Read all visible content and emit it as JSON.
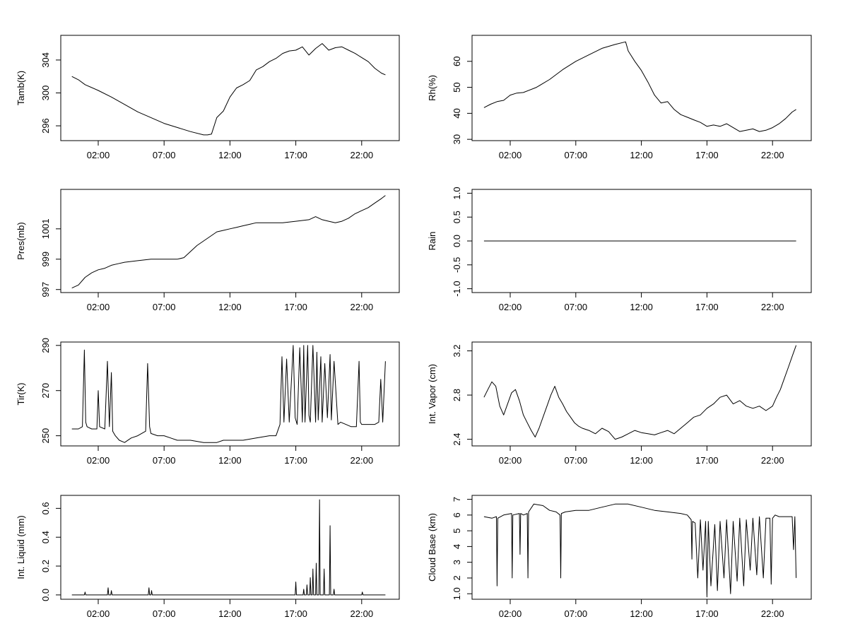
{
  "chart_data": [
    {
      "type": "line",
      "ylabel": "Tamb(K)",
      "xticks": [
        "02:00",
        "07:00",
        "12:00",
        "17:00",
        "22:00"
      ],
      "xlim": [
        0,
        24.7
      ],
      "ylim": [
        294.2,
        307.0
      ],
      "yticks": [
        296,
        300,
        304
      ],
      "series": [
        {
          "x": [
            0,
            0.5,
            1,
            2,
            3,
            4,
            5,
            6,
            7,
            8,
            9,
            10,
            10.3,
            10.6,
            11,
            11.5,
            12,
            12.5,
            13,
            13.5,
            14,
            14.5,
            15,
            15.5,
            16,
            16.5,
            17,
            17.5,
            18,
            18.5,
            19,
            19.5,
            20,
            20.5,
            21,
            21.5,
            22,
            22.5,
            23,
            23.5,
            23.8
          ],
          "y": [
            302.0,
            301.6,
            301.0,
            300.3,
            299.5,
            298.6,
            297.7,
            297.0,
            296.3,
            295.8,
            295.3,
            294.9,
            294.9,
            295.0,
            297.0,
            297.8,
            299.5,
            300.6,
            301.0,
            301.5,
            302.8,
            303.2,
            303.8,
            304.2,
            304.8,
            305.1,
            305.2,
            305.6,
            304.6,
            305.4,
            306.0,
            305.2,
            305.5,
            305.6,
            305.2,
            304.8,
            304.3,
            303.8,
            303.0,
            302.4,
            302.2
          ]
        }
      ]
    },
    {
      "type": "line",
      "ylabel": "Rh(%)",
      "xticks": [
        "02:00",
        "07:00",
        "12:00",
        "17:00",
        "22:00"
      ],
      "xlim": [
        0,
        24.7
      ],
      "ylim": [
        29.5,
        70.0
      ],
      "yticks": [
        30,
        40,
        50,
        60
      ],
      "series": [
        {
          "x": [
            0,
            0.5,
            1,
            1.5,
            2,
            2.5,
            3,
            4,
            5,
            6,
            7,
            8,
            9,
            10,
            10.8,
            11,
            11.5,
            12,
            12.5,
            13,
            13.5,
            14,
            14.5,
            15,
            15.5,
            16,
            16.5,
            17,
            17.5,
            18,
            18.5,
            19,
            19.5,
            20,
            20.5,
            21,
            21.5,
            22,
            22.5,
            23,
            23.5,
            23.8
          ],
          "y": [
            42.2,
            43.5,
            44.5,
            45.0,
            47.0,
            47.8,
            48.0,
            50.0,
            53.0,
            56.8,
            60.0,
            62.5,
            65.0,
            66.5,
            67.5,
            64.0,
            60.0,
            56.5,
            52.0,
            47.0,
            44.0,
            44.5,
            41.5,
            39.5,
            38.5,
            37.5,
            36.5,
            35.0,
            35.5,
            35.0,
            36.0,
            34.5,
            33.0,
            33.5,
            34.0,
            33.0,
            33.5,
            34.5,
            36.0,
            38.0,
            40.5,
            41.5
          ]
        }
      ]
    },
    {
      "type": "line",
      "ylabel": "Pres(mb)",
      "xticks": [
        "02:00",
        "07:00",
        "12:00",
        "17:00",
        "22:00"
      ],
      "xlim": [
        0,
        24.7
      ],
      "ylim": [
        996.8,
        1003.6
      ],
      "yticks": [
        997,
        999,
        1001
      ],
      "series": [
        {
          "x": [
            0,
            0.5,
            1,
            1.5,
            2,
            2.5,
            3,
            3.5,
            4,
            5,
            6,
            7,
            8,
            8.5,
            9,
            9.5,
            10,
            10.5,
            11,
            11.5,
            12,
            12.5,
            13,
            13.5,
            14,
            15,
            16,
            17,
            18,
            18.5,
            19,
            19.5,
            20,
            20.5,
            21,
            21.5,
            22,
            22.5,
            23,
            23.5,
            23.8
          ],
          "y": [
            997.1,
            997.3,
            997.8,
            998.1,
            998.3,
            998.4,
            998.6,
            998.7,
            998.8,
            998.9,
            999.0,
            999.0,
            999.0,
            999.1,
            999.5,
            999.9,
            1000.2,
            1000.5,
            1000.8,
            1000.9,
            1001.0,
            1001.1,
            1001.2,
            1001.3,
            1001.4,
            1001.4,
            1001.4,
            1001.5,
            1001.6,
            1001.8,
            1001.6,
            1001.5,
            1001.4,
            1001.5,
            1001.7,
            1002.0,
            1002.2,
            1002.4,
            1002.7,
            1003.0,
            1003.2
          ]
        }
      ]
    },
    {
      "type": "line",
      "ylabel": "Rain",
      "xticks": [
        "02:00",
        "07:00",
        "12:00",
        "17:00",
        "22:00"
      ],
      "xlim": [
        0,
        24.7
      ],
      "ylim": [
        -1.08,
        1.08
      ],
      "yticks": [
        -1.0,
        -0.5,
        0.0,
        0.5,
        1.0
      ],
      "series": [
        {
          "x": [
            0,
            23.8
          ],
          "y": [
            0.0,
            0.0
          ]
        }
      ]
    },
    {
      "type": "line",
      "ylabel": "Tir(K)",
      "xticks": [
        "02:00",
        "07:00",
        "12:00",
        "17:00",
        "22:00"
      ],
      "xlim": [
        0,
        24.7
      ],
      "ylim": [
        245.5,
        291.5
      ],
      "yticks": [
        250,
        270,
        290
      ],
      "series": [
        {
          "x": [
            0,
            0.5,
            0.8,
            0.95,
            1.05,
            1.15,
            1.5,
            1.9,
            2.0,
            2.1,
            2.5,
            2.7,
            2.85,
            3.0,
            3.1,
            3.3,
            3.6,
            4.0,
            4.5,
            5.0,
            5.6,
            5.75,
            5.9,
            6.0,
            6.5,
            7.0,
            7.5,
            8.0,
            9.0,
            10.0,
            11.0,
            11.5,
            12.0,
            13.0,
            14.0,
            15.0,
            15.5,
            15.8,
            15.95,
            16.1,
            16.3,
            16.5,
            16.7,
            16.8,
            16.95,
            17.1,
            17.3,
            17.5,
            17.6,
            17.7,
            17.9,
            18.0,
            18.1,
            18.3,
            18.5,
            18.6,
            18.7,
            18.9,
            19.0,
            19.2,
            19.4,
            19.6,
            19.7,
            19.9,
            20.2,
            20.4,
            20.8,
            21.2,
            21.6,
            21.8,
            21.9,
            22.0,
            22.3,
            22.6,
            23.0,
            23.3,
            23.45,
            23.6,
            23.8
          ],
          "y": [
            253,
            253,
            254,
            288,
            256,
            254,
            253,
            253,
            270,
            254,
            253,
            283,
            254,
            278,
            252,
            250,
            248,
            247,
            249,
            250,
            252,
            282,
            254,
            251,
            250,
            250,
            249,
            248,
            248,
            247,
            247,
            248,
            248,
            248,
            249,
            250,
            250,
            255,
            285,
            256,
            284,
            256,
            278,
            290,
            258,
            255,
            289,
            256,
            290,
            256,
            290,
            259,
            256,
            290,
            256,
            287,
            257,
            285,
            256,
            282,
            258,
            286,
            257,
            283,
            255,
            256,
            255,
            254,
            254,
            283,
            256,
            255,
            255,
            255,
            255,
            256,
            275,
            256,
            283
          ]
        }
      ]
    },
    {
      "type": "line",
      "ylabel": "Int. Vapor (cm)",
      "xticks": [
        "02:00",
        "07:00",
        "12:00",
        "17:00",
        "22:00"
      ],
      "xlim": [
        0,
        24.7
      ],
      "ylim": [
        2.34,
        3.28
      ],
      "yticks": [
        2.4,
        2.8,
        3.2
      ],
      "series": [
        {
          "x": [
            0,
            0.3,
            0.6,
            0.9,
            1.2,
            1.5,
            1.8,
            2.1,
            2.4,
            2.7,
            3.0,
            3.3,
            3.6,
            3.9,
            4.2,
            4.5,
            4.8,
            5.1,
            5.4,
            5.7,
            6.0,
            6.3,
            6.6,
            6.9,
            7.2,
            7.5,
            8.0,
            8.5,
            9.0,
            9.5,
            10.0,
            10.5,
            11.0,
            11.5,
            12.0,
            12.5,
            13.0,
            13.5,
            14.0,
            14.5,
            15.0,
            15.5,
            16.0,
            16.5,
            17.0,
            17.5,
            18.0,
            18.5,
            19.0,
            19.5,
            20.0,
            20.5,
            21.0,
            21.5,
            22.0,
            22.3,
            22.6,
            22.9,
            23.2,
            23.5,
            23.8
          ],
          "y": [
            2.78,
            2.85,
            2.92,
            2.88,
            2.7,
            2.62,
            2.72,
            2.82,
            2.85,
            2.75,
            2.62,
            2.55,
            2.48,
            2.42,
            2.5,
            2.6,
            2.7,
            2.8,
            2.88,
            2.78,
            2.72,
            2.65,
            2.6,
            2.55,
            2.52,
            2.5,
            2.48,
            2.45,
            2.5,
            2.47,
            2.4,
            2.42,
            2.45,
            2.48,
            2.46,
            2.45,
            2.44,
            2.46,
            2.48,
            2.45,
            2.5,
            2.55,
            2.6,
            2.62,
            2.68,
            2.72,
            2.78,
            2.8,
            2.72,
            2.75,
            2.7,
            2.68,
            2.7,
            2.66,
            2.7,
            2.78,
            2.85,
            2.95,
            3.05,
            3.15,
            3.25
          ]
        }
      ]
    },
    {
      "type": "line",
      "ylabel": "Int. Liquid (mm)",
      "xticks": [
        "02:00",
        "07:00",
        "12:00",
        "17:00",
        "22:00"
      ],
      "xlim": [
        0,
        24.7
      ],
      "ylim": [
        -0.03,
        0.69
      ],
      "yticks": [
        0.0,
        0.2,
        0.4,
        0.6
      ],
      "series": [
        {
          "x": [
            0,
            0.95,
            1.0,
            1.05,
            2.7,
            2.75,
            2.8,
            2.95,
            3.0,
            3.05,
            5.8,
            5.85,
            5.9,
            6.0,
            6.05,
            6.1,
            16.95,
            17.0,
            17.05,
            17.55,
            17.6,
            17.65,
            17.8,
            17.85,
            17.9,
            18.05,
            18.1,
            18.15,
            18.25,
            18.3,
            18.35,
            18.5,
            18.55,
            18.6,
            18.75,
            18.8,
            18.85,
            19.1,
            19.15,
            19.2,
            19.55,
            19.6,
            19.65,
            19.85,
            19.9,
            19.95,
            22.0,
            22.05,
            22.1,
            23.8
          ],
          "y": [
            0,
            0,
            0.02,
            0,
            0,
            0.05,
            0,
            0,
            0.03,
            0,
            0,
            0.05,
            0,
            0,
            0.03,
            0,
            0,
            0.09,
            0,
            0,
            0.04,
            0,
            0,
            0.07,
            0,
            0,
            0.12,
            0,
            0,
            0.18,
            0,
            0,
            0.22,
            0,
            0,
            0.66,
            0,
            0,
            0.18,
            0,
            0,
            0.48,
            0,
            0,
            0.04,
            0,
            0,
            0.02,
            0,
            0
          ]
        }
      ]
    },
    {
      "type": "line",
      "ylabel": "Cloud Base (km)",
      "xticks": [
        "02:00",
        "07:00",
        "12:00",
        "17:00",
        "22:00"
      ],
      "xlim": [
        0,
        24.7
      ],
      "ylim": [
        0.65,
        7.25
      ],
      "yticks": [
        1,
        2,
        3,
        4,
        5,
        6,
        7
      ],
      "series": [
        {
          "x": [
            0,
            0.6,
            0.95,
            1.0,
            1.05,
            1.5,
            2.1,
            2.15,
            2.2,
            2.7,
            2.75,
            2.8,
            3.0,
            3.3,
            3.35,
            3.4,
            3.8,
            4.5,
            5.0,
            5.5,
            5.8,
            5.85,
            5.9,
            6.2,
            7.0,
            8.0,
            9.0,
            10.0,
            11.0,
            12.0,
            13.0,
            14.0,
            15.0,
            15.5,
            15.8,
            15.85,
            15.9,
            16.1,
            16.3,
            16.5,
            16.7,
            16.9,
            17.0,
            17.1,
            17.3,
            17.6,
            17.8,
            18.0,
            18.3,
            18.5,
            18.8,
            19.0,
            19.3,
            19.5,
            19.8,
            20.0,
            20.3,
            20.5,
            20.8,
            21.0,
            21.3,
            21.5,
            21.8,
            21.9,
            22.0,
            22.2,
            22.5,
            23.0,
            23.5,
            23.6,
            23.7,
            23.8
          ],
          "y": [
            5.9,
            5.8,
            5.9,
            1.5,
            5.8,
            6.0,
            6.1,
            2.0,
            6.0,
            6.1,
            3.5,
            6.1,
            6.0,
            6.1,
            2.0,
            6.2,
            6.7,
            6.6,
            6.3,
            6.2,
            6.0,
            2.0,
            6.1,
            6.2,
            6.3,
            6.3,
            6.5,
            6.7,
            6.7,
            6.5,
            6.3,
            6.2,
            6.1,
            6.0,
            5.7,
            3.2,
            5.6,
            5.5,
            2.0,
            5.7,
            2.5,
            5.6,
            0.8,
            5.6,
            1.5,
            5.4,
            1.2,
            5.6,
            2.0,
            5.7,
            1.0,
            5.6,
            1.8,
            5.8,
            1.5,
            5.7,
            2.5,
            5.8,
            2.2,
            5.9,
            2.0,
            5.8,
            5.8,
            1.6,
            5.8,
            6.0,
            5.9,
            5.9,
            5.9,
            3.8,
            5.9,
            2.0
          ]
        }
      ]
    }
  ]
}
